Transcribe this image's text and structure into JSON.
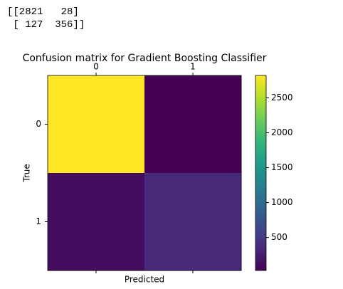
{
  "console_output": [
    "[[2821   28]",
    " [ 127  356]]"
  ],
  "chart_data": {
    "type": "heatmap",
    "title": "Confusion matrix for Gradient Boosting Classifier",
    "x_categories": [
      "0",
      "1"
    ],
    "y_categories": [
      "0",
      "1"
    ],
    "values": [
      [
        2821,
        28
      ],
      [
        127,
        356
      ]
    ],
    "xlabel": "Predicted",
    "ylabel": "True",
    "colormap": "viridis",
    "clim": [
      28,
      2821
    ],
    "colorbar_ticks": [
      500,
      1000,
      1500,
      2000,
      2500
    ]
  }
}
